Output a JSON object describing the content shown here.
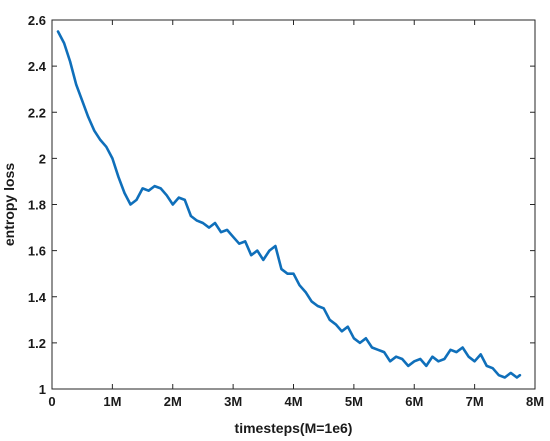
{
  "chart_data": {
    "type": "line",
    "title": "",
    "xlabel": "timesteps(M=1e6)",
    "ylabel": "entropy loss",
    "xlim": [
      0,
      8
    ],
    "ylim": [
      1,
      2.6
    ],
    "x_ticks": [
      0,
      1,
      2,
      3,
      4,
      5,
      6,
      7,
      8
    ],
    "x_tick_labels": [
      "0",
      "1M",
      "2M",
      "3M",
      "4M",
      "5M",
      "6M",
      "7M",
      "8M"
    ],
    "y_ticks": [
      1,
      1.2,
      1.4,
      1.6,
      1.8,
      2,
      2.2,
      2.4,
      2.6
    ],
    "y_tick_labels": [
      "1",
      "1.2",
      "1.4",
      "1.6",
      "1.8",
      "2",
      "2.2",
      "2.4",
      "2.6"
    ],
    "grid": false,
    "line_color": "#0f6fba",
    "series": [
      {
        "name": "",
        "x": [
          0.1,
          0.2,
          0.3,
          0.4,
          0.5,
          0.6,
          0.7,
          0.8,
          0.9,
          1.0,
          1.1,
          1.2,
          1.3,
          1.4,
          1.5,
          1.6,
          1.7,
          1.8,
          1.9,
          2.0,
          2.1,
          2.2,
          2.3,
          2.4,
          2.5,
          2.6,
          2.7,
          2.8,
          2.9,
          3.0,
          3.1,
          3.2,
          3.3,
          3.4,
          3.5,
          3.6,
          3.7,
          3.8,
          3.9,
          4.0,
          4.1,
          4.2,
          4.3,
          4.4,
          4.5,
          4.6,
          4.7,
          4.8,
          4.9,
          5.0,
          5.1,
          5.2,
          5.3,
          5.4,
          5.5,
          5.6,
          5.7,
          5.8,
          5.9,
          6.0,
          6.1,
          6.2,
          6.3,
          6.4,
          6.5,
          6.6,
          6.7,
          6.8,
          6.9,
          7.0,
          7.1,
          7.2,
          7.3,
          7.4,
          7.5,
          7.6,
          7.7,
          7.75
        ],
        "y": [
          2.55,
          2.5,
          2.42,
          2.32,
          2.25,
          2.18,
          2.12,
          2.08,
          2.05,
          2.0,
          1.92,
          1.85,
          1.8,
          1.82,
          1.87,
          1.86,
          1.88,
          1.87,
          1.84,
          1.8,
          1.83,
          1.82,
          1.75,
          1.73,
          1.72,
          1.7,
          1.72,
          1.68,
          1.69,
          1.66,
          1.63,
          1.64,
          1.58,
          1.6,
          1.56,
          1.6,
          1.62,
          1.52,
          1.5,
          1.5,
          1.45,
          1.42,
          1.38,
          1.36,
          1.35,
          1.3,
          1.28,
          1.25,
          1.27,
          1.22,
          1.2,
          1.22,
          1.18,
          1.17,
          1.16,
          1.12,
          1.14,
          1.13,
          1.1,
          1.12,
          1.13,
          1.1,
          1.14,
          1.12,
          1.13,
          1.17,
          1.16,
          1.18,
          1.14,
          1.12,
          1.15,
          1.1,
          1.09,
          1.06,
          1.05,
          1.07,
          1.05,
          1.06
        ]
      }
    ]
  }
}
